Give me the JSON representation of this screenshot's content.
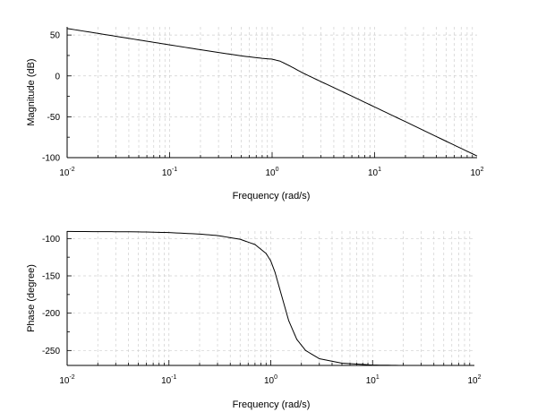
{
  "chart_data": [
    {
      "type": "line",
      "xlabel": "Frequency (rad/s)",
      "ylabel": "Magnitude (dB)",
      "xscale": "log",
      "xlim": [
        0.01,
        100
      ],
      "ylim": [
        -100,
        60
      ],
      "grid": true,
      "x_tick_labels": [
        "10-2",
        "10-1",
        "100",
        "101",
        "102"
      ],
      "x_tick_values": [
        0.01,
        0.1,
        1,
        10,
        100
      ],
      "y_ticks": [
        50,
        0,
        -50,
        -100
      ],
      "y_tick_labels": [
        "50",
        "0",
        "-50",
        "-100"
      ],
      "series": [
        {
          "x": [
            0.01,
            0.02,
            0.05,
            0.1,
            0.2,
            0.5,
            0.8,
            1.0,
            1.2,
            1.5,
            2,
            3,
            5,
            10,
            20,
            50,
            100
          ],
          "y": [
            58.0,
            52.0,
            44.0,
            38.0,
            32.0,
            24.5,
            21.5,
            20.5,
            18.0,
            12.0,
            3.5,
            -7.0,
            -20.0,
            -38.0,
            -56.0,
            -80.0,
            -98.0
          ]
        }
      ]
    },
    {
      "type": "line",
      "xlabel": "Frequency (rad/s)",
      "ylabel": "Phase (degree)",
      "xscale": "log",
      "xlim": [
        0.01,
        100
      ],
      "ylim": [
        -270,
        -90
      ],
      "grid": true,
      "x_tick_labels": [
        "10-2",
        "10-1",
        "100",
        "101",
        "102"
      ],
      "x_tick_values": [
        0.01,
        0.1,
        1,
        10,
        100
      ],
      "y_ticks": [
        -100,
        -150,
        -200,
        -250
      ],
      "y_tick_labels": [
        "-100",
        "-150",
        "-200",
        "-250"
      ],
      "series": [
        {
          "x": [
            0.01,
            0.05,
            0.1,
            0.2,
            0.3,
            0.5,
            0.7,
            0.9,
            1.0,
            1.1,
            1.3,
            1.5,
            1.8,
            2.2,
            3,
            5,
            10,
            20,
            100
          ],
          "y": [
            -90.5,
            -91.0,
            -92.0,
            -94.0,
            -96.0,
            -101.0,
            -108.0,
            -120.0,
            -130.0,
            -145.0,
            -180.0,
            -210.0,
            -235.0,
            -250.0,
            -261.0,
            -267.0,
            -269.5,
            -270.0,
            -270.0
          ]
        }
      ]
    }
  ]
}
